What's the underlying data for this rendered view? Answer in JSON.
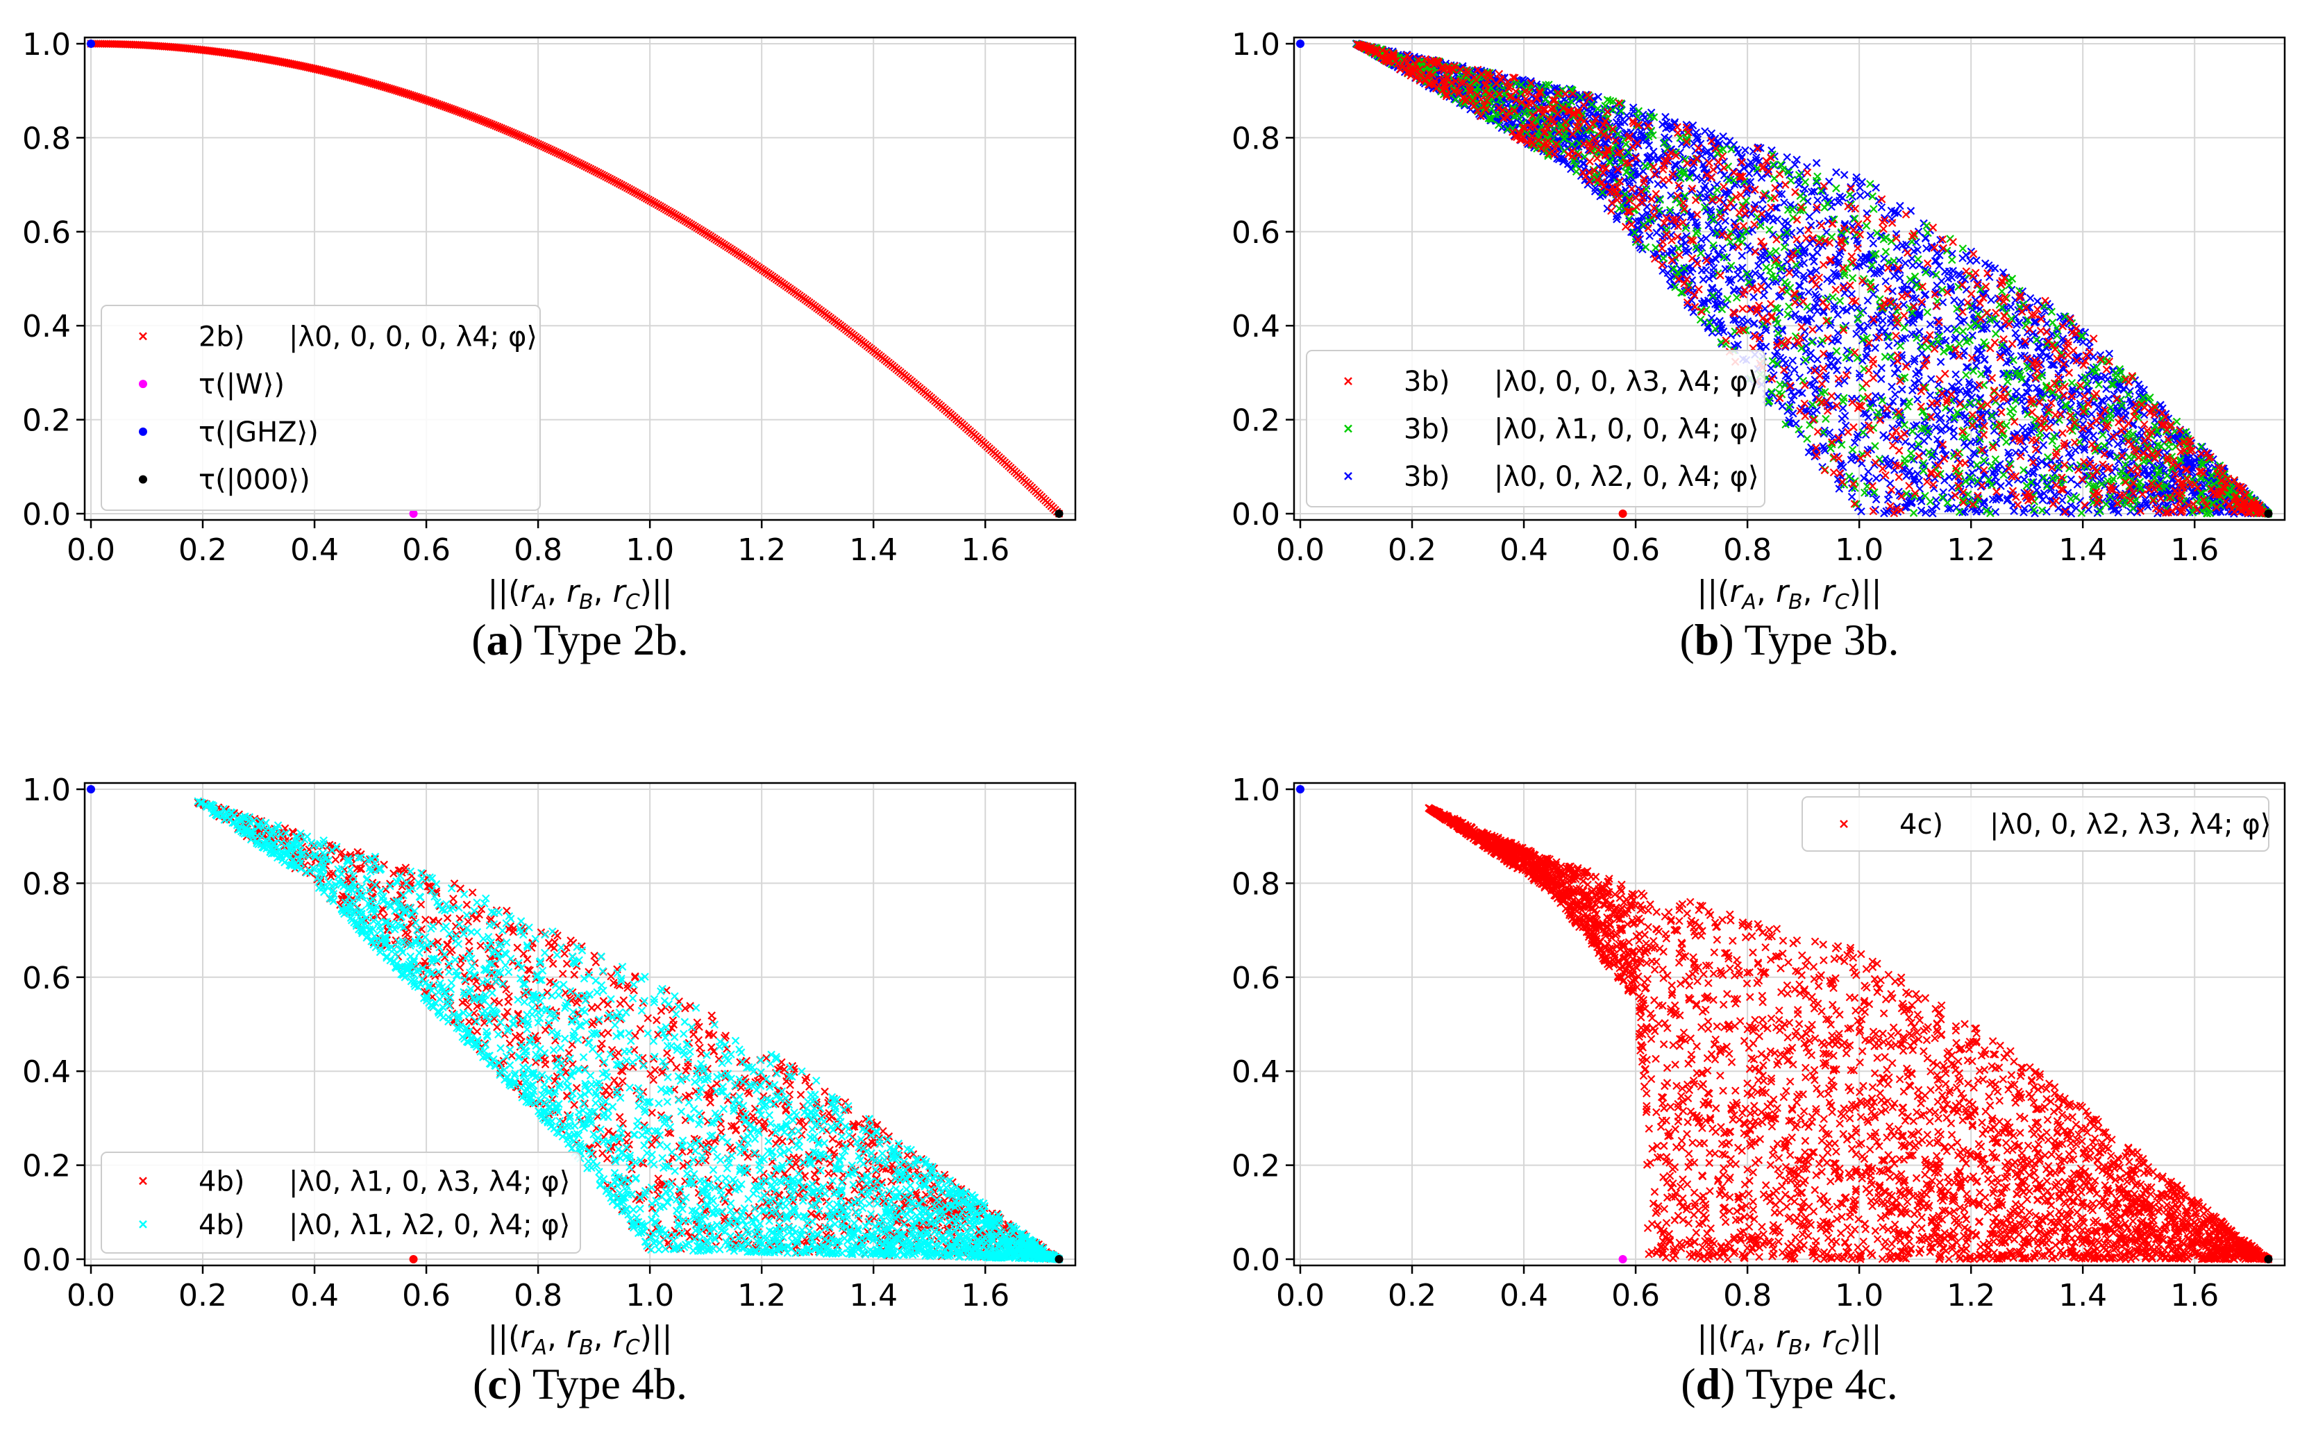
{
  "chart_data": [
    {
      "type": "scatter",
      "caption_letter": "a",
      "caption_rest": " Type 2b.",
      "xlabel": "||(r_A, r_B, r_C)||",
      "xlim": [
        0,
        1.75
      ],
      "ylim": [
        0,
        1.0
      ],
      "xticks": [
        "0.0",
        "0.2",
        "0.4",
        "0.6",
        "0.8",
        "1.0",
        "1.2",
        "1.4",
        "1.6"
      ],
      "yticks": [
        "0.0",
        "0.2",
        "0.4",
        "0.6",
        "0.8",
        "1.0"
      ],
      "grid": true,
      "legend_position": "center-left",
      "series": [
        {
          "name": "2b)  |λ0, 0, 0, 0, λ4; φ⟩",
          "marker": "x",
          "color": "#ff0000",
          "shape": "curve"
        },
        {
          "name": "τ(|W⟩)",
          "marker": "dot",
          "color": "#ff00ff",
          "x": [
            0.577
          ],
          "y": [
            0.0
          ]
        },
        {
          "name": "τ(|GHZ⟩)",
          "marker": "dot",
          "color": "#0000ff",
          "x": [
            0.0
          ],
          "y": [
            1.0
          ]
        },
        {
          "name": "τ(|000⟩)",
          "marker": "dot",
          "color": "#000000",
          "x": [
            1.732
          ],
          "y": [
            0.0
          ]
        }
      ]
    },
    {
      "type": "scatter",
      "caption_letter": "b",
      "caption_rest": " Type 3b.",
      "xlabel": "||(r_A, r_B, r_C)||",
      "xlim": [
        0,
        1.75
      ],
      "ylim": [
        0,
        1.0
      ],
      "xticks": [
        "0.0",
        "0.2",
        "0.4",
        "0.6",
        "0.8",
        "1.0",
        "1.2",
        "1.4",
        "1.6"
      ],
      "yticks": [
        "0.0",
        "0.2",
        "0.4",
        "0.6",
        "0.8",
        "1.0"
      ],
      "grid": true,
      "legend_position": "lower-left",
      "series": [
        {
          "name": "3b)  |λ0, 0, 0, λ3, λ4; φ⟩",
          "marker": "x",
          "color": "#ff0000"
        },
        {
          "name": "3b)  |λ0, λ1, 0, 0, λ4; φ⟩",
          "marker": "x",
          "color": "#00cc00"
        },
        {
          "name": "3b)  |λ0, 0, λ2, 0, λ4; φ⟩",
          "marker": "x",
          "color": "#0000ff"
        }
      ],
      "region": {
        "upper": [
          [
            0.1,
            1.0
          ],
          [
            0.5,
            0.9
          ],
          [
            1.0,
            0.72
          ],
          [
            1.4,
            0.4
          ],
          [
            1.732,
            0.0
          ]
        ],
        "lower": [
          [
            0.1,
            1.0
          ],
          [
            0.5,
            0.72
          ],
          [
            1.0,
            0.0
          ],
          [
            1.732,
            0.0
          ]
        ]
      }
    },
    {
      "type": "scatter",
      "caption_letter": "c",
      "caption_rest": " Type 4b.",
      "xlabel": "||(r_A, r_B, r_C)||",
      "xlim": [
        0,
        1.75
      ],
      "ylim": [
        0,
        1.0
      ],
      "xticks": [
        "0.0",
        "0.2",
        "0.4",
        "0.6",
        "0.8",
        "1.0",
        "1.2",
        "1.4",
        "1.6"
      ],
      "yticks": [
        "0.0",
        "0.2",
        "0.4",
        "0.6",
        "0.8",
        "1.0"
      ],
      "grid": true,
      "legend_position": "lower-left",
      "series": [
        {
          "name": "4b)  |λ0, λ1, 0, λ3, λ4; φ⟩",
          "marker": "x",
          "color": "#ff0000"
        },
        {
          "name": "4b)  |λ0, λ1, λ2, 0, λ4; φ⟩",
          "marker": "x",
          "color": "#00ffff"
        }
      ],
      "region": {
        "upper": [
          [
            0.18,
            0.98
          ],
          [
            0.4,
            0.9
          ],
          [
            0.65,
            0.8
          ],
          [
            1.0,
            0.6
          ],
          [
            1.3,
            0.38
          ],
          [
            1.732,
            0.0
          ]
        ],
        "lower": [
          [
            0.18,
            0.98
          ],
          [
            0.4,
            0.8
          ],
          [
            0.6,
            0.55
          ],
          [
            0.85,
            0.25
          ],
          [
            1.0,
            0.02
          ],
          [
            1.732,
            0.0
          ]
        ]
      }
    },
    {
      "type": "scatter",
      "caption_letter": "d",
      "caption_rest": " Type 4c.",
      "xlabel": "||(r_A, r_B, r_C)||",
      "xlim": [
        0,
        1.75
      ],
      "ylim": [
        0,
        1.0
      ],
      "xticks": [
        "0.0",
        "0.2",
        "0.4",
        "0.6",
        "0.8",
        "1.0",
        "1.2",
        "1.4",
        "1.6"
      ],
      "yticks": [
        "0.0",
        "0.2",
        "0.4",
        "0.6",
        "0.8",
        "1.0"
      ],
      "grid": true,
      "legend_position": "upper-right",
      "series": [
        {
          "name": "4c)  |λ0, 0, λ2, λ3, λ4; φ⟩",
          "marker": "x",
          "color": "#ff0000"
        }
      ],
      "region": {
        "upper": [
          [
            0.23,
            0.96
          ],
          [
            0.45,
            0.85
          ],
          [
            0.7,
            0.76
          ],
          [
            1.0,
            0.66
          ],
          [
            1.3,
            0.42
          ],
          [
            1.732,
            0.0
          ]
        ],
        "lower": [
          [
            0.23,
            0.96
          ],
          [
            0.45,
            0.78
          ],
          [
            0.6,
            0.55
          ],
          [
            0.62,
            0.3
          ],
          [
            0.58,
            0.0
          ],
          [
            1.732,
            0.0
          ]
        ]
      }
    }
  ]
}
